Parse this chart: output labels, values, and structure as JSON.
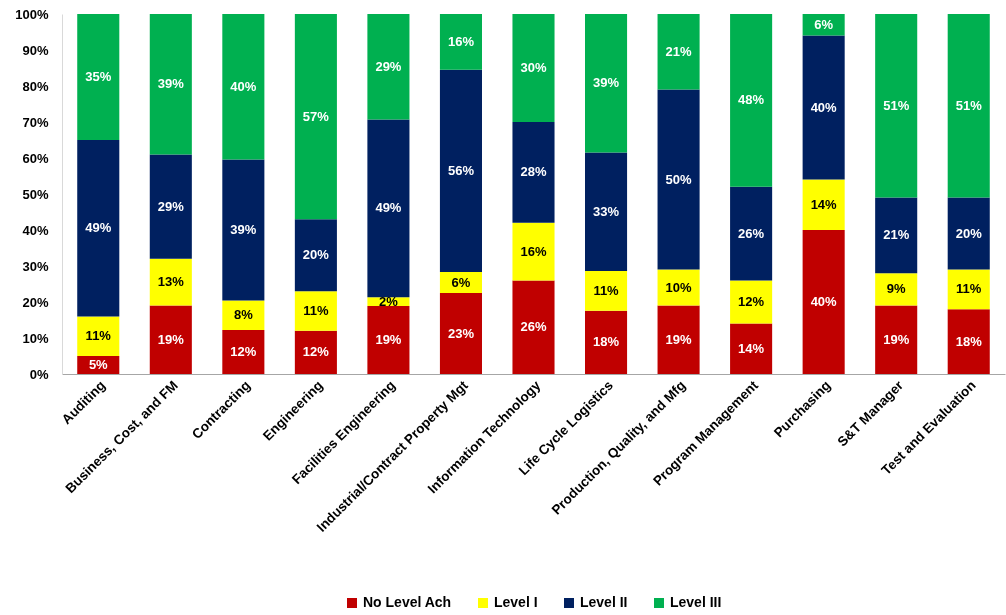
{
  "chart_data": {
    "type": "bar",
    "stacked": true,
    "legend": "bottom",
    "categories": [
      "Auditing",
      "Business, Cost, and FM",
      "Contracting",
      "Engineering",
      "Facilities Engineering",
      "Industrial/Contract Property Mgt",
      "Information Technology",
      "Life Cycle Logistics",
      "Production, Quality, and Mfg",
      "Program Management",
      "Purchasing",
      "S&T Manager",
      "Test and Evaluation"
    ],
    "series": [
      {
        "name": "No Level Ach",
        "color": "#c00000",
        "values": [
          5,
          19,
          12.2,
          12,
          18.9,
          22.5,
          26,
          17.6,
          19,
          14,
          40,
          19,
          18
        ],
        "value_labels": [
          "5%",
          "19%",
          "12%",
          "12%",
          "19%",
          "23%",
          "26%",
          "18%",
          "19%",
          "14%",
          "40%",
          "19%",
          "18%"
        ]
      },
      {
        "name": "Level I",
        "color": "#ffff00",
        "values": [
          11,
          13,
          8.2,
          11,
          2.4,
          5.8,
          16,
          11,
          10,
          12,
          14,
          9,
          11
        ],
        "value_labels": [
          "11%",
          "13%",
          "8%",
          "11%",
          "2%",
          "6%",
          "16%",
          "11%",
          "10%",
          "12%",
          "14%",
          "9%",
          "11%"
        ]
      },
      {
        "name": "Level II",
        "color": "#002060",
        "values": [
          49,
          29,
          39.2,
          20,
          49.4,
          56.2,
          28,
          32.9,
          50,
          26,
          40,
          21,
          20
        ],
        "value_labels": [
          "49%",
          "29%",
          "39%",
          "20%",
          "49%",
          "56%",
          "28%",
          "33%",
          "50%",
          "26%",
          "40%",
          "21%",
          "20%"
        ]
      },
      {
        "name": "Level III",
        "color": "#00b050",
        "values": [
          35,
          39,
          40.4,
          57,
          29.3,
          15.5,
          30,
          38.5,
          21,
          48,
          6,
          51,
          51
        ],
        "value_labels": [
          "35%",
          "39%",
          "40%",
          "57%",
          "29%",
          "16%",
          "30%",
          "39%",
          "21%",
          "48%",
          "6%",
          "51%",
          "51%"
        ]
      }
    ],
    "ylim": [
      0,
      100
    ],
    "yticks": [
      {
        "value": 0,
        "label": "0%"
      },
      {
        "value": 10,
        "label": "10%"
      },
      {
        "value": 20,
        "label": "20%"
      },
      {
        "value": 30,
        "label": "30%"
      },
      {
        "value": 40,
        "label": "40%"
      },
      {
        "value": 50,
        "label": "50%"
      },
      {
        "value": 60,
        "label": "60%"
      },
      {
        "value": 70,
        "label": "70%"
      },
      {
        "value": 80,
        "label": "80%"
      },
      {
        "value": 90,
        "label": "90%"
      },
      {
        "value": 100,
        "label": "100%"
      }
    ]
  }
}
